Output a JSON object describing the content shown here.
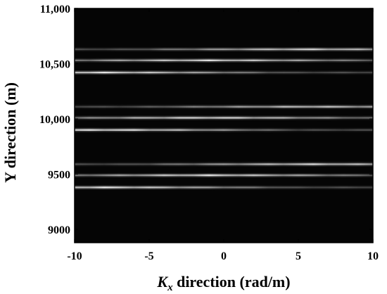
{
  "chart_data": {
    "type": "heatmap",
    "xlabel_symbol": "K",
    "xlabel_subscript": "x",
    "xlabel_rest": " direction (rad/m)",
    "ylabel": "Y direction (m)",
    "xlim": [
      -10,
      10
    ],
    "ylim": [
      8880,
      11000
    ],
    "x_ticks": [
      -10,
      -5,
      0,
      5,
      10
    ],
    "x_tick_labels": [
      "-10",
      "-5",
      "0",
      "5",
      "10"
    ],
    "y_ticks": [
      9000,
      9500,
      10000,
      10500,
      11000
    ],
    "y_tick_labels": [
      "9000",
      "9500",
      "10,000",
      "10,500",
      "11,000"
    ],
    "background_color": "#050505",
    "line_color": "#ffffff",
    "bright_lines": [
      {
        "y": 10630,
        "x_range": [
          -10,
          10
        ],
        "peak_x": 5.5,
        "intensity": 0.8
      },
      {
        "y": 10530,
        "x_range": [
          -10,
          10
        ],
        "peak_x": -1.0,
        "intensity": 0.85
      },
      {
        "y": 10420,
        "x_range": [
          -10,
          10
        ],
        "peak_x": -8.5,
        "intensity": 0.9
      },
      {
        "y": 10110,
        "x_range": [
          -10,
          10
        ],
        "peak_x": 6.0,
        "intensity": 0.75
      },
      {
        "y": 10010,
        "x_range": [
          -10,
          10
        ],
        "peak_x": -1.0,
        "intensity": 0.85
      },
      {
        "y": 9900,
        "x_range": [
          -10,
          10
        ],
        "peak_x": -8.0,
        "intensity": 0.9
      },
      {
        "y": 9590,
        "x_range": [
          -10,
          10
        ],
        "peak_x": 6.0,
        "intensity": 0.8
      },
      {
        "y": 9490,
        "x_range": [
          -10,
          10
        ],
        "peak_x": -1.0,
        "intensity": 0.85
      },
      {
        "y": 9380,
        "x_range": [
          -10,
          10
        ],
        "peak_x": -8.0,
        "intensity": 0.9
      }
    ]
  }
}
